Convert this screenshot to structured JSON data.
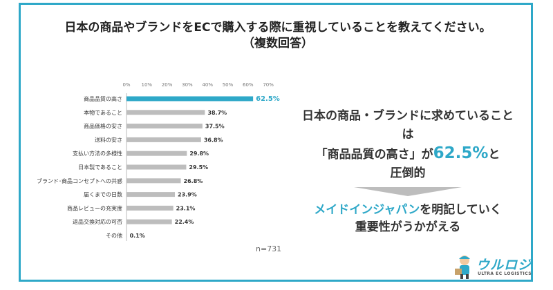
{
  "title": {
    "line1": "日本の商品やブランドをECで購入する際に重視していることを教えてください。",
    "line2": "（複数回答）"
  },
  "chart_data": {
    "type": "bar",
    "orientation": "horizontal",
    "categories": [
      "商品品質の高さ",
      "本物であること",
      "商品価格の安さ",
      "送料の安さ",
      "支払い方法の多様性",
      "日本製であること",
      "ブランド･商品コンセプトへの共感",
      "届くまでの日数",
      "商品レビューの充実度",
      "返品交換対応の可否",
      "その他"
    ],
    "values": [
      62.5,
      38.7,
      37.5,
      36.8,
      29.8,
      29.5,
      26.8,
      23.9,
      23.1,
      22.4,
      0.1
    ],
    "value_labels": [
      "62.5%",
      "38.7%",
      "37.5%",
      "36.8%",
      "29.8%",
      "29.5%",
      "26.8%",
      "23.9%",
      "23.1%",
      "22.4%",
      "0.1%"
    ],
    "highlight_index": 0,
    "xticks": [
      "0%",
      "10%",
      "20%",
      "30%",
      "40%",
      "50%",
      "60%",
      "70%"
    ],
    "xlim": [
      0,
      70
    ],
    "colors": {
      "highlight": "#2ea8c8",
      "default": "#bdbdbd"
    }
  },
  "sample_note": "n=731",
  "message": {
    "line1": "日本の商品・ブランドに求めていることは",
    "quote": "「商品品質の高さ」が",
    "percent": "62.5%",
    "suffix": "と",
    "line3": "圧倒的",
    "line4_hl": "メイドインジャパン",
    "line4_rest": "を明記していく",
    "line5": "重要性がうかがえる"
  },
  "logo": {
    "text": "ウルロジ",
    "subtitle": "ULTRA EC LOGISTICS",
    "icon": "worker-mascot-icon"
  }
}
